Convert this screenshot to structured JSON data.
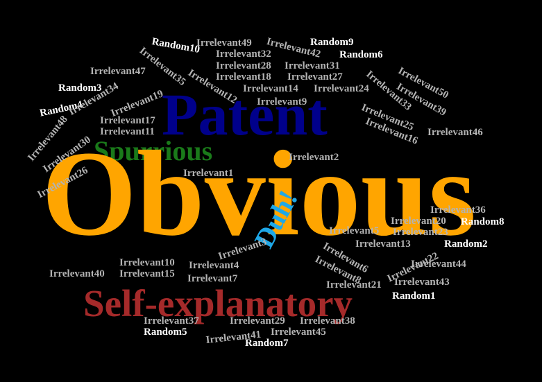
{
  "colors": {
    "background": "#000000",
    "irrelevant": "#b3b3b3",
    "random": "#ffffff",
    "obvious": "#ffa500",
    "patent": "#00008b",
    "spurrious": "#1a7a1a",
    "duh": "#1ea8e8",
    "self_explanatory": "#a52a2a"
  },
  "words": {
    "obvious": "Obvious",
    "patent": "Patent",
    "spurrious": "Spurrious",
    "duh": "Duh!",
    "self_explanatory": "Self-explanatory",
    "random1": "Random1",
    "random2": "Random2",
    "random3": "Random3",
    "random4": "Random4",
    "random5": "Random5",
    "random6": "Random6",
    "random7": "Random7",
    "random8": "Random8",
    "random9": "Random9",
    "random10": "Random10",
    "irr1": "Irrelevant1",
    "irr2": "Irrelevant2",
    "irr3": "Irrelevant3",
    "irr4": "Irrelevant4",
    "irr5": "Irrelevant5",
    "irr6": "Irrelevant6",
    "irr7": "Irrelevant7",
    "irr8": "Irrelevant8",
    "irr9": "Irrelevant9",
    "irr10": "Irrelevant10",
    "irr11": "Irrelevant11",
    "irr12": "Irrelevant12",
    "irr13": "Irrelevant13",
    "irr14": "Irrelevant14",
    "irr15": "Irrelevant15",
    "irr16": "Irrelevant16",
    "irr17": "Irrelevant17",
    "irr18": "Irrelevant18",
    "irr19": "Irrelevant19",
    "irr20": "Irrelevant20",
    "irr21": "Irrelevant21",
    "irr22": "Irrelevant22",
    "irr23": "Irrelevant23",
    "irr24": "Irrelevant24",
    "irr25": "Irrelevant25",
    "irr26": "Irrelevant26",
    "irr27": "Irrelevant27",
    "irr28": "Irrelevant28",
    "irr29": "Irrelevant29",
    "irr30": "Irrelevant30",
    "irr31": "Irrelevant31",
    "irr32": "Irrelevant32",
    "irr33": "Irrelevant33",
    "irr34": "Irrelevant34",
    "irr35": "Irrelevant35",
    "irr36": "Irrelevant36",
    "irr37": "Irrelevant37",
    "irr38": "Irrelevant38",
    "irr39": "Irrelevant39",
    "irr40": "Irrelevant40",
    "irr41": "Irrelevant41",
    "irr42": "Irrelevant42",
    "irr43": "Irrelevant43",
    "irr44": "Irrelevant44",
    "irr45": "Irrelevant45",
    "irr46": "Irrelevant46",
    "irr47": "Irrelevant47",
    "irr48": "Irrelevant48",
    "irr49": "Irrelevant49",
    "irr50": "Irrelevant50"
  }
}
